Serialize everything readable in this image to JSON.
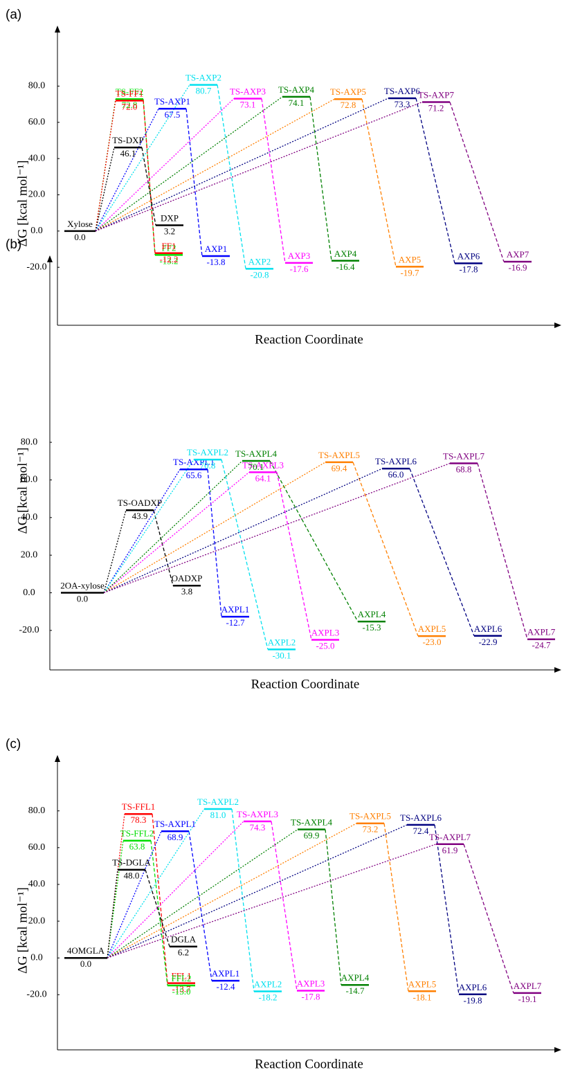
{
  "chart_data": [
    {
      "type": "energy",
      "panel": "(a)",
      "ylabel": "ΔG [kcal mol⁻¹]",
      "xlabel": "Reaction Coordinate",
      "ylim": [
        -52,
        113
      ],
      "yticks": [
        {
          "value": -20,
          "label": "-20.0"
        },
        {
          "value": 0,
          "label": "0.0"
        },
        {
          "value": 20,
          "label": "20.0"
        },
        {
          "value": 40,
          "label": "40.0"
        },
        {
          "value": 60,
          "label": "60.0"
        },
        {
          "value": 80,
          "label": "80.0"
        }
      ],
      "reactant": {
        "name": "Xylose",
        "value": 0,
        "value_label": "0.0",
        "color": "#000000"
      },
      "pathways": [
        {
          "color": "#00dd00",
          "ts": {
            "name": "TS-FF2",
            "value": 72.8
          },
          "product": {
            "name": "FF2",
            "value": -13.2
          }
        },
        {
          "color": "#ff0000",
          "ts": {
            "name": "TS-FF1",
            "value": 72,
            "value_label": "72.0"
          },
          "product": {
            "name": "FF1",
            "value": -12.2
          }
        },
        {
          "color": "#000000",
          "ts": {
            "name": "TS-DXP",
            "value": 46.1
          },
          "product": {
            "name": "DXP",
            "value": 3.2
          }
        },
        {
          "color": "#0000ff",
          "ts": {
            "name": "TS-AXP1",
            "value": 67.5
          },
          "product": {
            "name": "AXP1",
            "value": -13.8
          }
        },
        {
          "color": "#00e0ee",
          "ts": {
            "name": "TS-AXP2",
            "value": 80.7
          },
          "product": {
            "name": "AXP2",
            "value": -20.8
          }
        },
        {
          "color": "#ff00ff",
          "ts": {
            "name": "TS-AXP3",
            "value": 73.1
          },
          "product": {
            "name": "AXP3",
            "value": -17.6
          }
        },
        {
          "color": "#008000",
          "ts": {
            "name": "TS-AXP4",
            "value": 74.1
          },
          "product": {
            "name": "AXP4",
            "value": -16.4
          }
        },
        {
          "color": "#ff7f00",
          "ts": {
            "name": "TS-AXP5",
            "value": 72.8
          },
          "product": {
            "name": "AXP5",
            "value": -19.7
          }
        },
        {
          "color": "#000080",
          "ts": {
            "name": "TS-AXP6",
            "value": 73.3
          },
          "product": {
            "name": "AXP6",
            "value": -17.8
          }
        },
        {
          "color": "#800080",
          "ts": {
            "name": "TS-AXP7",
            "value": 71.2
          },
          "product": {
            "name": "AXP7",
            "value": -16.9
          }
        }
      ]
    },
    {
      "type": "energy",
      "panel": "(b)",
      "ylabel": "ΔG [kcal mol⁻¹]",
      "xlabel": "Reaction Coordinate",
      "ylim": [
        -41,
        179
      ],
      "yticks": [
        {
          "value": -20,
          "label": "-20.0"
        },
        {
          "value": 0,
          "label": "0.0"
        },
        {
          "value": 20,
          "label": "20.0"
        },
        {
          "value": 40,
          "label": "40.0"
        },
        {
          "value": 60,
          "label": "60.0"
        },
        {
          "value": 80,
          "label": "80.0"
        }
      ],
      "reactant": {
        "name": "2OA-xylose",
        "value": 0,
        "value_label": "0.0",
        "color": "#000000"
      },
      "pathways": [
        {
          "color": "#000000",
          "ts": {
            "name": "TS-OADXP",
            "value": 43.9
          },
          "product": {
            "name": "OADXP",
            "value": 3.8
          }
        },
        {
          "color": "#0000ff",
          "ts": {
            "name": "TS-AXPL1",
            "value": 65.6
          },
          "product": {
            "name": "AXPL1",
            "value": -12.7
          }
        },
        {
          "color": "#00e0ee",
          "ts": {
            "name": "TS-AXPL2",
            "value": 70.8
          },
          "product": {
            "name": "AXPL2",
            "value": -30.1
          }
        },
        {
          "color": "#ff00ff",
          "ts": {
            "name": "TS-AXPL3",
            "value": 64.1
          },
          "product": {
            "name": "AXPL3",
            "value": -25,
            "value_label": "-25.0"
          }
        },
        {
          "color": "#008000",
          "ts": {
            "name": "TS-AXPL4",
            "value": 70.1
          },
          "product": {
            "name": "AXPL4",
            "value": -15.3
          }
        },
        {
          "color": "#ff7f00",
          "ts": {
            "name": "TS-AXPL5",
            "value": 69.4
          },
          "product": {
            "name": "AXPL5",
            "value": -23,
            "value_label": "-23.0"
          }
        },
        {
          "color": "#000080",
          "ts": {
            "name": "TS-AXPL6",
            "value": 66,
            "value_label": "66.0"
          },
          "product": {
            "name": "AXPL6",
            "value": -22.9
          }
        },
        {
          "color": "#800080",
          "ts": {
            "name": "TS-AXPL7",
            "value": 68.8
          },
          "product": {
            "name": "AXPL7",
            "value": -24.7
          }
        }
      ]
    },
    {
      "type": "energy",
      "panel": "(c)",
      "ylabel": "ΔG [kcal mol⁻¹]",
      "xlabel": "Reaction Coordinate",
      "ylim": [
        -50,
        110
      ],
      "yticks": [
        {
          "value": -20,
          "label": "-20.0"
        },
        {
          "value": 0,
          "label": "0.0"
        },
        {
          "value": 20,
          "label": "20.0"
        },
        {
          "value": 40,
          "label": "40.0"
        },
        {
          "value": 60,
          "label": "60.0"
        },
        {
          "value": 80,
          "label": "80.0"
        }
      ],
      "reactant": {
        "name": "4OMGLA",
        "value": 0,
        "value_label": "0.0",
        "color": "#000000"
      },
      "pathways": [
        {
          "color": "#ff0000",
          "ts": {
            "name": "TS-FFL1",
            "value": 78.3
          },
          "product": {
            "name": "FFL1",
            "value": -13.7
          }
        },
        {
          "color": "#00dd00",
          "ts": {
            "name": "TS-FFL2",
            "value": 63.8
          },
          "product": {
            "name": "FFL2",
            "value": -15,
            "value_label": "-15.0"
          }
        },
        {
          "color": "#000000",
          "ts": {
            "name": "TS-DGLA",
            "value": 48,
            "value_label": "48.0"
          },
          "product": {
            "name": "DGLA",
            "value": 6.2
          }
        },
        {
          "color": "#0000ff",
          "ts": {
            "name": "TS-AXPL1",
            "value": 68.9
          },
          "product": {
            "name": "AXPL1",
            "value": -12.4
          }
        },
        {
          "color": "#00e0ee",
          "ts": {
            "name": "TS-AXPL2",
            "value": 81,
            "value_label": "81.0"
          },
          "product": {
            "name": "AXPL2",
            "value": -18.2
          }
        },
        {
          "color": "#ff00ff",
          "ts": {
            "name": "TS-AXPL3",
            "value": 74.3
          },
          "product": {
            "name": "AXPL3",
            "value": -17.8
          }
        },
        {
          "color": "#008000",
          "ts": {
            "name": "TS-AXPL4",
            "value": 69.9
          },
          "product": {
            "name": "AXPL4",
            "value": -14.7
          }
        },
        {
          "color": "#ff7f00",
          "ts": {
            "name": "TS-AXPL5",
            "value": 73.2
          },
          "product": {
            "name": "AXPL5",
            "value": -18.1
          }
        },
        {
          "color": "#000080",
          "ts": {
            "name": "TS-AXPL6",
            "value": 72.4
          },
          "product": {
            "name": "AXPL6",
            "value": -19.8
          }
        },
        {
          "color": "#800080",
          "ts": {
            "name": "TS-AXPL7",
            "value": 61.9
          },
          "product": {
            "name": "AXPL7",
            "value": -19.1
          }
        }
      ]
    }
  ]
}
